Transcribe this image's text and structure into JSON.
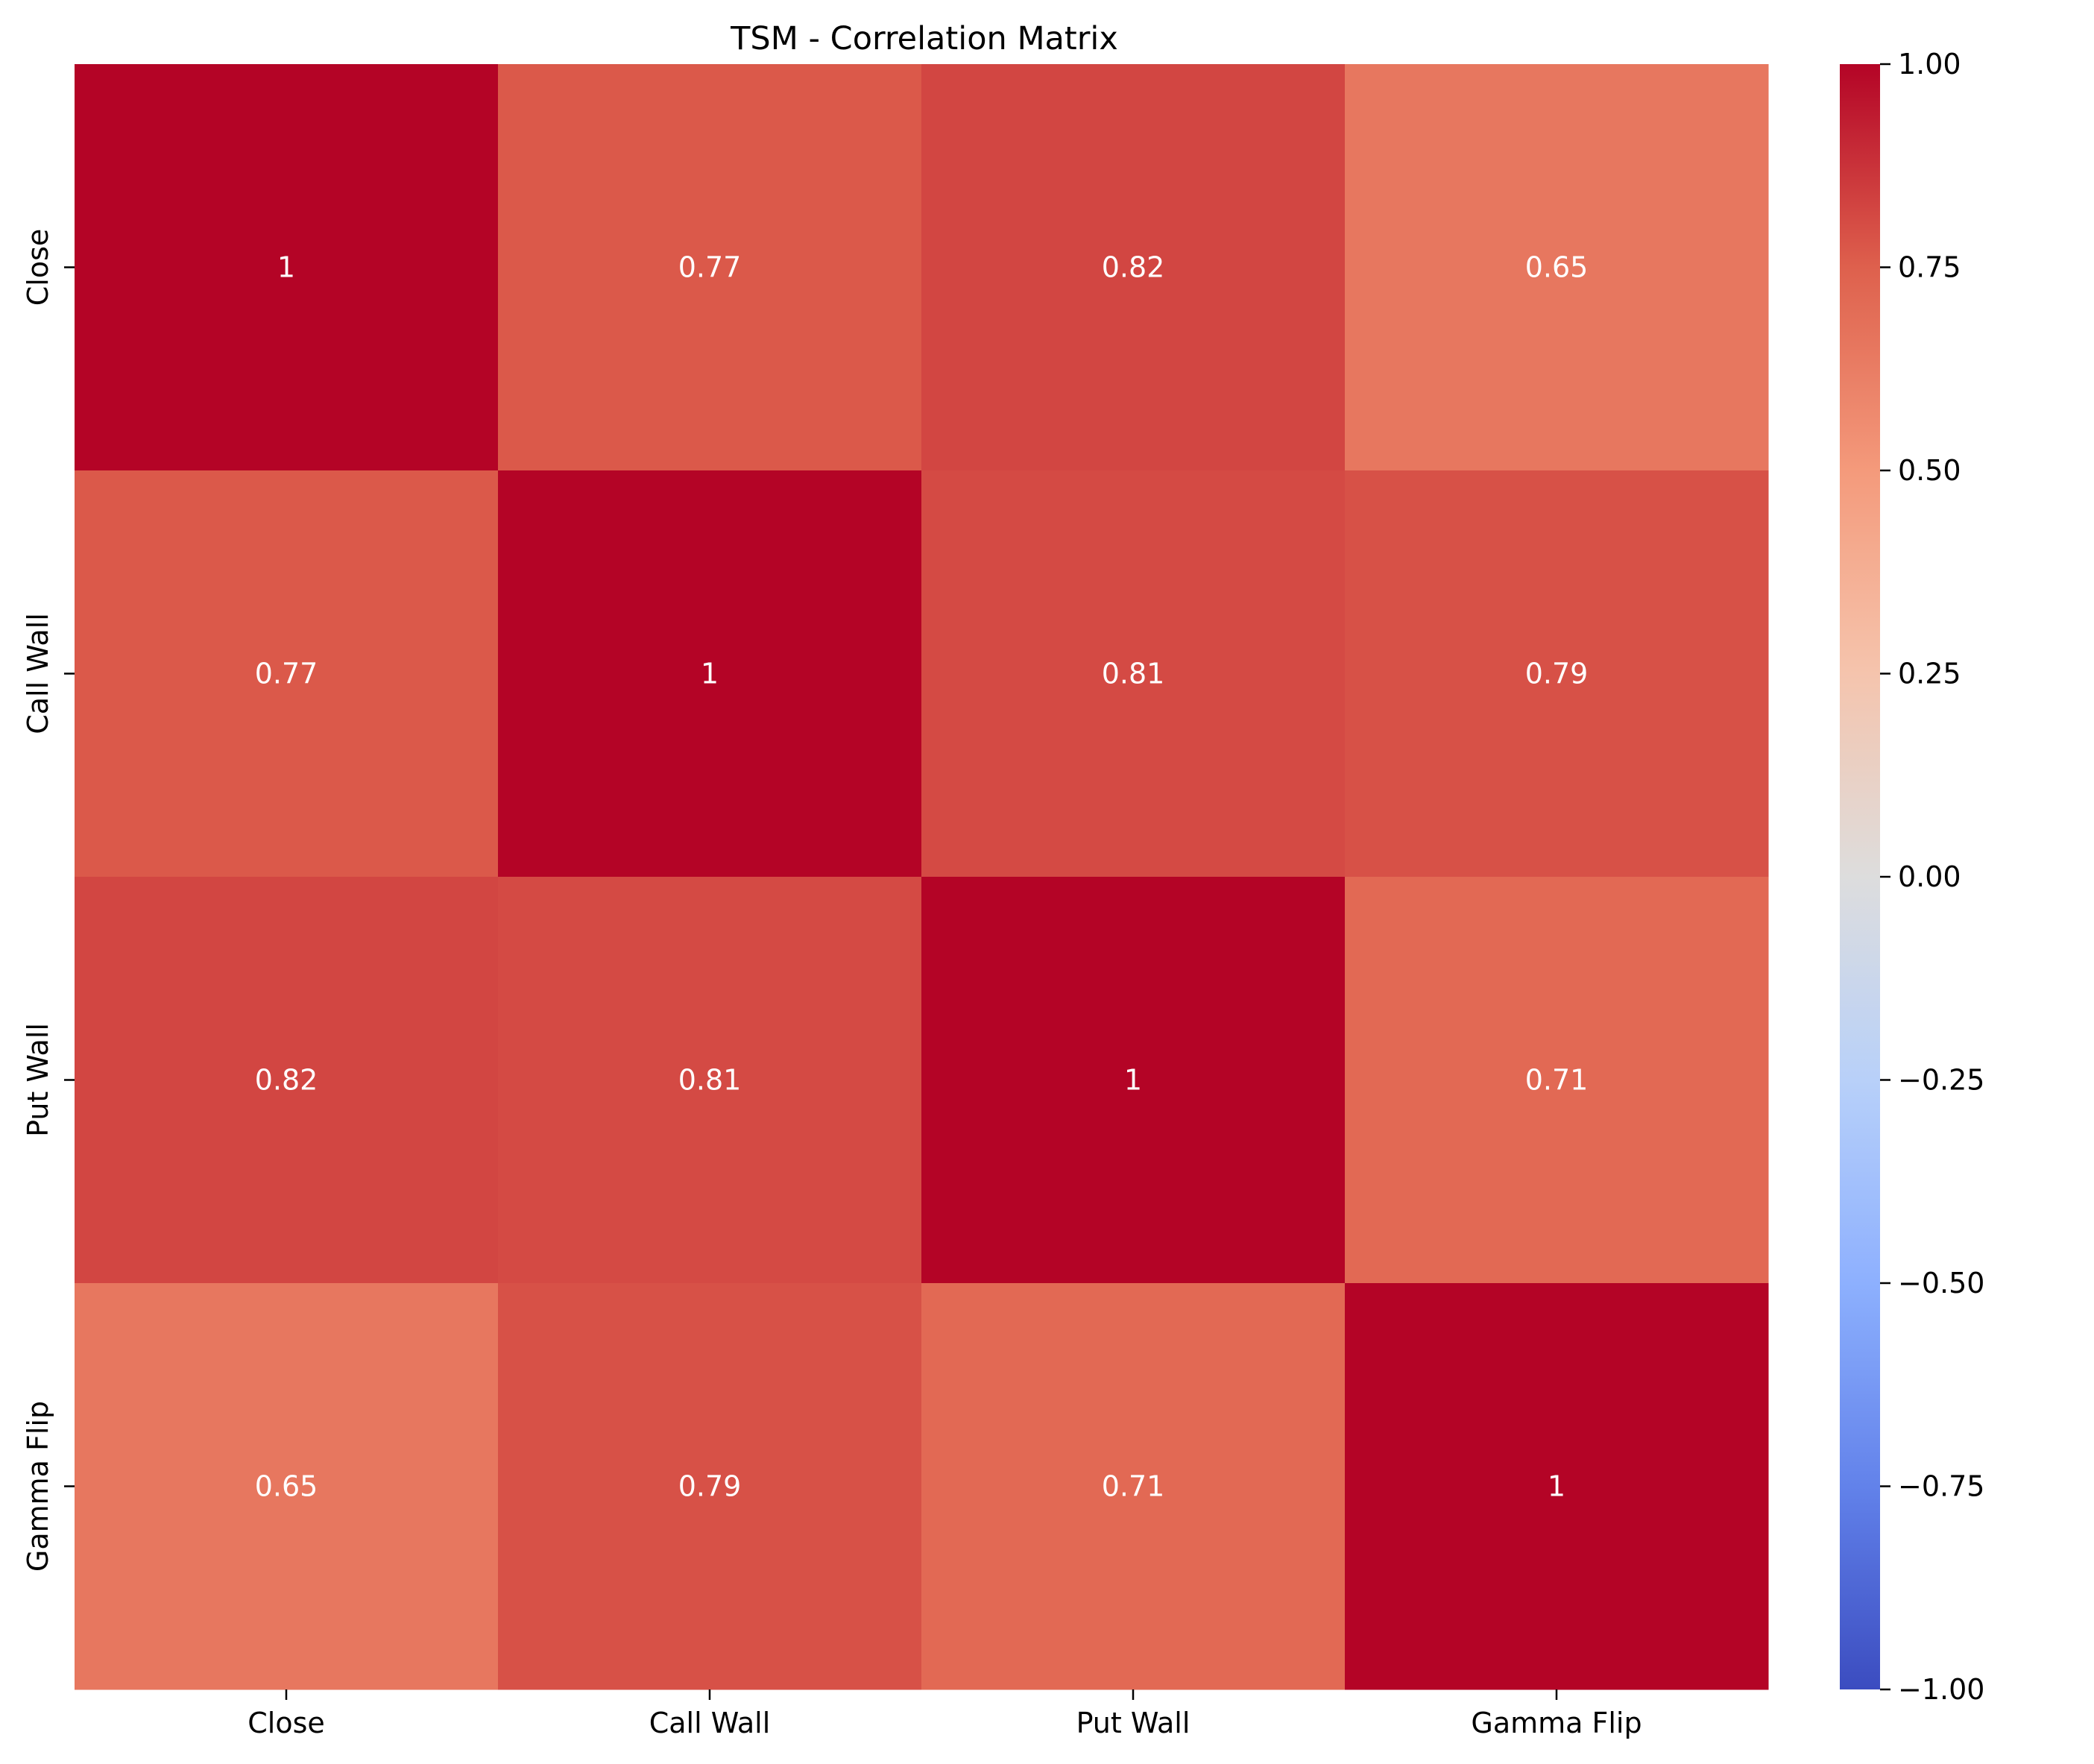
{
  "chart_data": {
    "type": "heatmap",
    "title": "TSM - Correlation Matrix",
    "row_labels": [
      "Close",
      "Call Wall",
      "Put Wall",
      "Gamma Flip"
    ],
    "col_labels": [
      "Close",
      "Call Wall",
      "Put Wall",
      "Gamma Flip"
    ],
    "values": [
      [
        1.0,
        0.77,
        0.82,
        0.65
      ],
      [
        0.77,
        1.0,
        0.81,
        0.79
      ],
      [
        0.82,
        0.81,
        1.0,
        0.71
      ],
      [
        0.65,
        0.79,
        0.71,
        1.0
      ]
    ],
    "annotations": [
      [
        "1",
        "0.77",
        "0.82",
        "0.65"
      ],
      [
        "0.77",
        "1",
        "0.81",
        "0.79"
      ],
      [
        "0.82",
        "0.81",
        "1",
        "0.71"
      ],
      [
        "0.65",
        "0.79",
        "0.71",
        "1"
      ]
    ],
    "colormap": "coolwarm",
    "colorbar": {
      "vmin": -1.0,
      "vmax": 1.0,
      "ticks": [
        1.0,
        0.75,
        0.5,
        0.25,
        0.0,
        -0.25,
        -0.5,
        -0.75,
        -1.0
      ],
      "tick_labels": [
        "1.00",
        "0.75",
        "0.50",
        "0.25",
        "0.00",
        "−0.25",
        "−0.50",
        "−0.75",
        "−1.00"
      ]
    },
    "xlabel": "",
    "ylabel": "",
    "grid": false
  }
}
